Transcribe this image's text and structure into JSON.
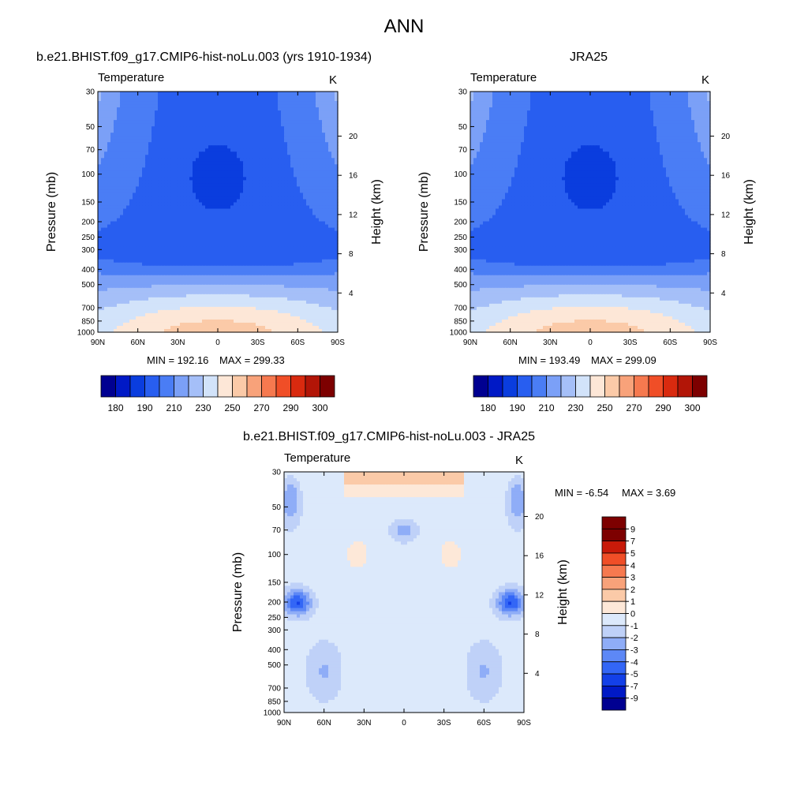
{
  "figure": {
    "title": "ANN"
  },
  "colors": {
    "abs_palette": [
      "#000091",
      "#0019c6",
      "#0a3dde",
      "#285ef0",
      "#4a7df5",
      "#7ba0f7",
      "#a5bff8",
      "#d2e3fa",
      "#fde7d7",
      "#fbcaa8",
      "#f8a27a",
      "#f6794f",
      "#f04e27",
      "#d92a0f",
      "#b21507",
      "#7d0000"
    ],
    "diff_palette": [
      "#000091",
      "#0019c6",
      "#1340e8",
      "#3366f6",
      "#5d88f6",
      "#8fadf7",
      "#bfd1f8",
      "#dce9fb",
      "#fde8d8",
      "#fbcaa8",
      "#f8a27a",
      "#f6794f",
      "#f04e27",
      "#c81a09",
      "#7d0000"
    ]
  },
  "chart_data": [
    {
      "type": "heatmap",
      "title": "b.e21.BHIST.f09_g17.CMIP6-hist-noLu.003 (yrs 1910-1934)",
      "subtitle_left": "Temperature",
      "subtitle_right": "K",
      "xlabel": "",
      "ylabel": "Pressure (mb)",
      "ylabel_right": "Height (km)",
      "x_ticks": [
        "90N",
        "60N",
        "30N",
        "0",
        "30S",
        "60S",
        "90S"
      ],
      "y_ticks": [
        30,
        50,
        70,
        100,
        150,
        200,
        250,
        300,
        400,
        500,
        700,
        850,
        1000
      ],
      "y_right_ticks": [
        4,
        8,
        12,
        16,
        20
      ],
      "y_scale": "log",
      "min_label": "MIN = 192.16",
      "max_label": "MAX = 299.33",
      "colorbar_labels": [
        "180",
        "190",
        "210",
        "230",
        "250",
        "270",
        "290",
        "300"
      ]
    },
    {
      "type": "heatmap",
      "title": "JRA25",
      "subtitle_left": "Temperature",
      "subtitle_right": "K",
      "xlabel": "",
      "ylabel": "Pressure (mb)",
      "ylabel_right": "Height (km)",
      "x_ticks": [
        "90N",
        "60N",
        "30N",
        "0",
        "30S",
        "60S",
        "90S"
      ],
      "y_ticks": [
        30,
        50,
        70,
        100,
        150,
        200,
        250,
        300,
        400,
        500,
        700,
        850,
        1000
      ],
      "y_right_ticks": [
        4,
        8,
        12,
        16,
        20
      ],
      "y_scale": "log",
      "min_label": "MIN = 193.49",
      "max_label": "MAX = 299.09",
      "colorbar_labels": [
        "180",
        "190",
        "210",
        "230",
        "250",
        "270",
        "290",
        "300"
      ]
    },
    {
      "type": "heatmap",
      "title": "b.e21.BHIST.f09_g17.CMIP6-hist-noLu.003 - JRA25",
      "subtitle_left": "Temperature",
      "subtitle_right": "K",
      "xlabel": "",
      "ylabel": "Pressure (mb)",
      "ylabel_right": "Height (km)",
      "x_ticks": [
        "90N",
        "60N",
        "30N",
        "0",
        "30S",
        "60S",
        "90S"
      ],
      "y_ticks": [
        30,
        50,
        70,
        100,
        150,
        200,
        250,
        300,
        400,
        500,
        700,
        850,
        1000
      ],
      "y_right_ticks": [
        4,
        8,
        12,
        16,
        20
      ],
      "y_scale": "log",
      "min_label": "MIN =  -6.54",
      "max_label": "MAX =   3.69",
      "colorbar_labels": [
        "9",
        "7",
        "5",
        "4",
        "3",
        "2",
        "1",
        "0",
        "-1",
        "-2",
        "-3",
        "-4",
        "-5",
        "-7",
        "-9"
      ]
    }
  ]
}
